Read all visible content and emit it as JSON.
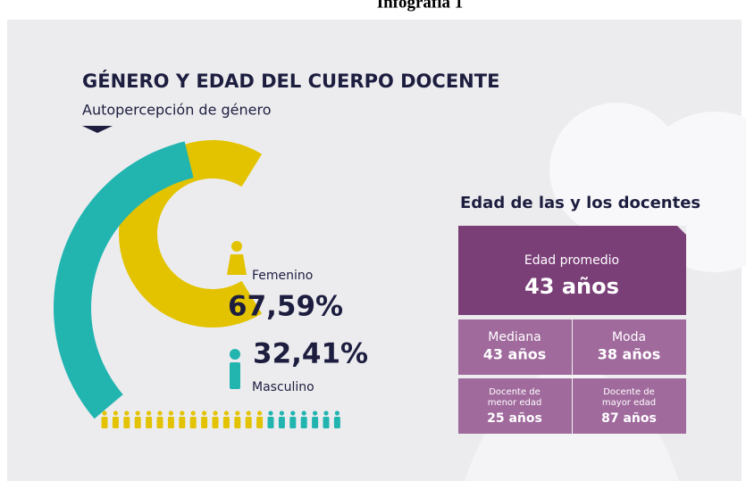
{
  "caption": "Infografía 1",
  "title": "GÉNERO Y EDAD DEL CUERPO DOCENTE",
  "subtitle": "Autopercepción de género",
  "gender": [
    {
      "label": "Femenino",
      "value": 67.59,
      "value_label": "67,59%",
      "color": "#e3c300"
    },
    {
      "label": "Masculino",
      "value": 32.41,
      "value_label": "32,41%",
      "color": "#22b5b0"
    }
  ],
  "age": {
    "heading": "Edad de las y los docentes",
    "main": {
      "label": "Edad promedio",
      "value": "43 años"
    },
    "cells": [
      {
        "label": "Mediana",
        "value": "43 años"
      },
      {
        "label": "Moda",
        "value": "38 años"
      },
      {
        "label": "Docente de menor edad",
        "value": "25 años"
      },
      {
        "label": "Docente de mayor edad",
        "value": "87 años"
      }
    ]
  }
}
